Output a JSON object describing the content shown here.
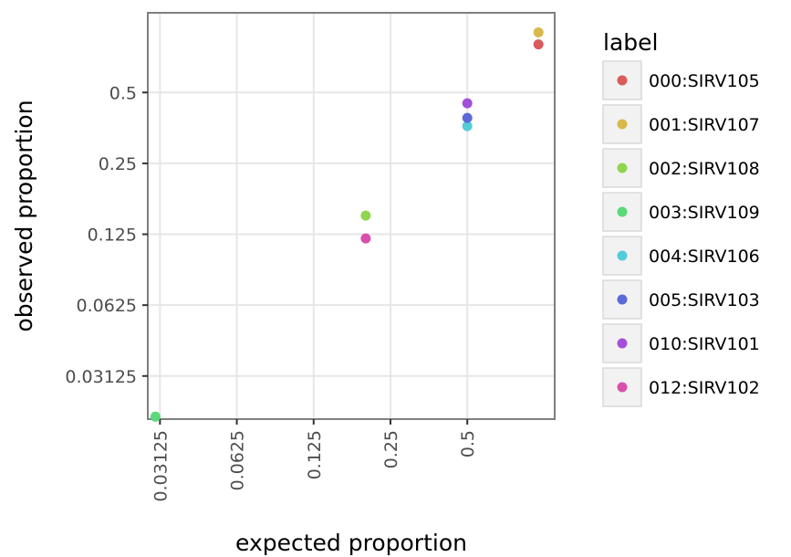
{
  "chart_data": {
    "type": "scatter",
    "xlabel": "expected proportion",
    "ylabel": "observed proportion",
    "x_scale": "log2",
    "y_scale": "log2",
    "x_ticks": [
      0.03125,
      0.0625,
      0.125,
      0.25,
      0.5
    ],
    "x_tick_labels": [
      "0.03125",
      "0.0625",
      "0.125",
      "0.25",
      "0.5"
    ],
    "y_ticks": [
      0.03125,
      0.0625,
      0.125,
      0.25,
      0.5
    ],
    "y_tick_labels": [
      "0.03125",
      "0.0625",
      "0.125",
      "0.25",
      "0.5"
    ],
    "xlim": [
      0.028,
      1.1
    ],
    "ylim": [
      0.0205,
      1.09
    ],
    "grid": true,
    "legend_title": "label",
    "legend_position": "right",
    "series": [
      {
        "name": "000:SIRV105",
        "color": "#d95b5b",
        "x": [
          0.95
        ],
        "y": [
          0.8
        ]
      },
      {
        "name": "001:SIRV107",
        "color": "#d8b94c",
        "x": [
          0.95
        ],
        "y": [
          0.9
        ]
      },
      {
        "name": "002:SIRV108",
        "color": "#8fd64d",
        "x": [
          0.2
        ],
        "y": [
          0.15
        ]
      },
      {
        "name": "003:SIRV109",
        "color": "#5bd978",
        "x": [
          0.03
        ],
        "y": [
          0.021
        ]
      },
      {
        "name": "004:SIRV106",
        "color": "#55ccd9",
        "x": [
          0.5
        ],
        "y": [
          0.36
        ]
      },
      {
        "name": "005:SIRV103",
        "color": "#5b6ad9",
        "x": [
          0.5
        ],
        "y": [
          0.39
        ]
      },
      {
        "name": "010:SIRV101",
        "color": "#a34fd9",
        "x": [
          0.5
        ],
        "y": [
          0.45
        ]
      },
      {
        "name": "012:SIRV102",
        "color": "#d94fae",
        "x": [
          0.2
        ],
        "y": [
          0.12
        ]
      }
    ]
  }
}
